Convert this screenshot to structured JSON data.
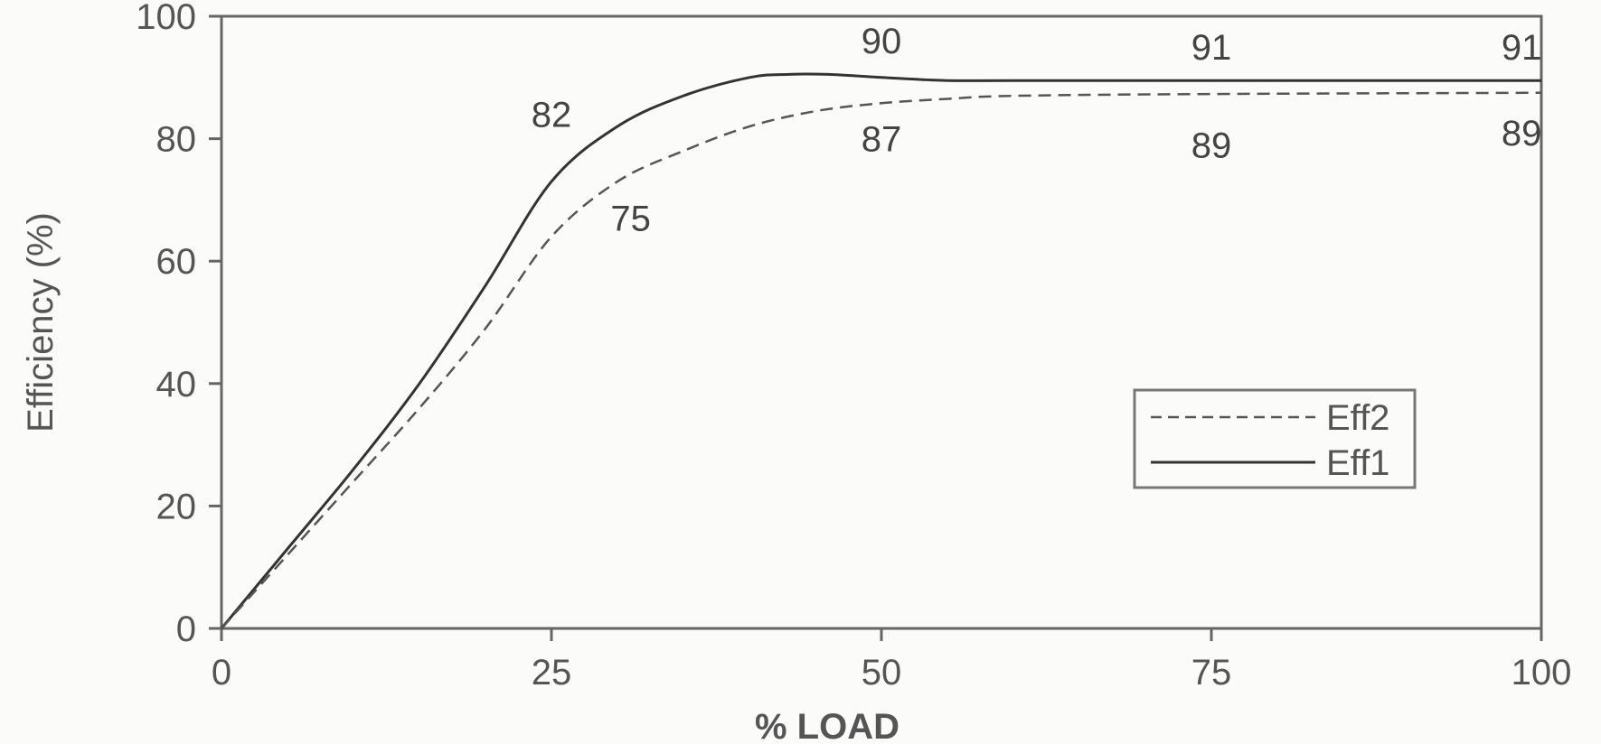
{
  "chart_data": {
    "type": "line",
    "title": "",
    "xlabel": "% LOAD",
    "ylabel": "Efficiency (%)",
    "xlim": [
      0,
      100
    ],
    "ylim": [
      0,
      100
    ],
    "xticks": [
      0,
      25,
      50,
      75,
      100
    ],
    "yticks": [
      0,
      20,
      40,
      60,
      80,
      100
    ],
    "grid": false,
    "legend_position": "center-right",
    "legend_order": [
      "Eff2",
      "Eff1"
    ],
    "series": [
      {
        "name": "Eff1",
        "style": "solid",
        "color": "#333333",
        "x": [
          0,
          5,
          10,
          15,
          20,
          25,
          30,
          35,
          40,
          43,
          46,
          50,
          55,
          60,
          75,
          100
        ],
        "y": [
          0,
          13,
          26,
          40,
          56,
          73,
          82,
          87,
          90,
          90.5,
          90.5,
          90,
          89.5,
          89.5,
          89.5,
          89.5
        ]
      },
      {
        "name": "Eff2",
        "style": "dashed",
        "color": "#555555",
        "x": [
          0,
          5,
          10,
          15,
          20,
          25,
          30,
          35,
          40,
          45,
          50,
          55,
          60,
          75,
          100
        ],
        "y": [
          0,
          12,
          24,
          36,
          49,
          64,
          73,
          78,
          82,
          84.5,
          85.8,
          86.5,
          87,
          87.3,
          87.5
        ]
      }
    ],
    "annotations": [
      {
        "text": "82",
        "x": 25,
        "y": 84
      },
      {
        "text": "75",
        "x": 31,
        "y": 67
      },
      {
        "text": "90",
        "x": 50,
        "y": 96
      },
      {
        "text": "87",
        "x": 50,
        "y": 80
      },
      {
        "text": "91",
        "x": 75,
        "y": 95
      },
      {
        "text": "89",
        "x": 75,
        "y": 79
      },
      {
        "text": "91",
        "x": 98.5,
        "y": 95
      },
      {
        "text": "89",
        "x": 98.5,
        "y": 81
      }
    ]
  }
}
